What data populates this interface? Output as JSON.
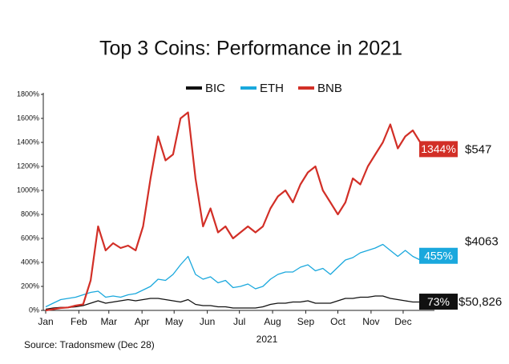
{
  "chart_data": {
    "type": "line",
    "title": "Top 3 Coins: Performance in 2021",
    "x_label": "2021",
    "source": "Source: Tradonsmew (Dec 28)",
    "x": [
      1,
      8,
      15,
      22,
      29,
      36,
      43,
      50,
      57,
      64,
      71,
      78,
      85,
      92,
      99,
      106,
      113,
      120,
      127,
      134,
      141,
      148,
      155,
      162,
      169,
      176,
      183,
      190,
      197,
      204,
      211,
      218,
      225,
      232,
      239,
      246,
      253,
      260,
      267,
      274,
      281,
      288,
      295,
      302,
      309,
      316,
      323,
      330,
      337,
      344,
      351,
      358,
      362
    ],
    "xlim": [
      1,
      362
    ],
    "xticks": [
      {
        "value": 1,
        "label": "Jan"
      },
      {
        "value": 32,
        "label": "Feb"
      },
      {
        "value": 60,
        "label": "Mar"
      },
      {
        "value": 91,
        "label": "Apr"
      },
      {
        "value": 121,
        "label": "May"
      },
      {
        "value": 152,
        "label": "Jun"
      },
      {
        "value": 182,
        "label": "Jul"
      },
      {
        "value": 213,
        "label": "Aug"
      },
      {
        "value": 244,
        "label": "Sep"
      },
      {
        "value": 274,
        "label": "Oct"
      },
      {
        "value": 305,
        "label": "Nov"
      },
      {
        "value": 335,
        "label": "Dec"
      }
    ],
    "ylim": [
      0,
      1800
    ],
    "yticks": [
      {
        "value": 0,
        "label": "0%"
      },
      {
        "value": 200,
        "label": "200%"
      },
      {
        "value": 400,
        "label": "400%"
      },
      {
        "value": 600,
        "label": "600%"
      },
      {
        "value": 800,
        "label": "800%"
      },
      {
        "value": 1000,
        "label": "1000%"
      },
      {
        "value": 1200,
        "label": "1200%"
      },
      {
        "value": 1400,
        "label": "1400%"
      },
      {
        "value": 1600,
        "label": "1600%"
      },
      {
        "value": 1800,
        "label": "1800%"
      }
    ],
    "grid": false,
    "series": [
      {
        "name": "BIC",
        "color": "#111111",
        "last_label": "73%",
        "price": "$50,826",
        "values": [
          10,
          20,
          25,
          25,
          30,
          40,
          60,
          80,
          60,
          70,
          80,
          90,
          80,
          90,
          100,
          100,
          90,
          80,
          70,
          90,
          50,
          40,
          40,
          30,
          30,
          20,
          20,
          20,
          20,
          30,
          50,
          60,
          60,
          70,
          70,
          80,
          60,
          60,
          60,
          80,
          100,
          100,
          110,
          110,
          120,
          120,
          100,
          90,
          80,
          70,
          70,
          70,
          73
        ]
      },
      {
        "name": "ETH",
        "color": "#1aa8dd",
        "last_label": "455%",
        "price": "$4063",
        "values": [
          30,
          60,
          90,
          100,
          110,
          130,
          150,
          160,
          110,
          120,
          110,
          130,
          140,
          170,
          200,
          260,
          250,
          300,
          380,
          450,
          300,
          260,
          280,
          230,
          250,
          190,
          200,
          220,
          180,
          200,
          260,
          300,
          320,
          320,
          360,
          380,
          330,
          350,
          300,
          360,
          420,
          440,
          480,
          500,
          520,
          550,
          500,
          450,
          500,
          450,
          420,
          440,
          455
        ]
      },
      {
        "name": "BNB",
        "color": "#d22f27",
        "last_label": "1344%",
        "price": "$547",
        "values": [
          0,
          10,
          20,
          25,
          40,
          50,
          250,
          700,
          500,
          560,
          520,
          540,
          500,
          700,
          1100,
          1450,
          1250,
          1300,
          1600,
          1650,
          1100,
          700,
          850,
          650,
          700,
          600,
          650,
          700,
          650,
          700,
          850,
          950,
          1000,
          900,
          1050,
          1150,
          1200,
          1000,
          900,
          800,
          900,
          1100,
          1050,
          1200,
          1300,
          1400,
          1550,
          1350,
          1450,
          1500,
          1400,
          1300,
          1344
        ]
      }
    ]
  }
}
